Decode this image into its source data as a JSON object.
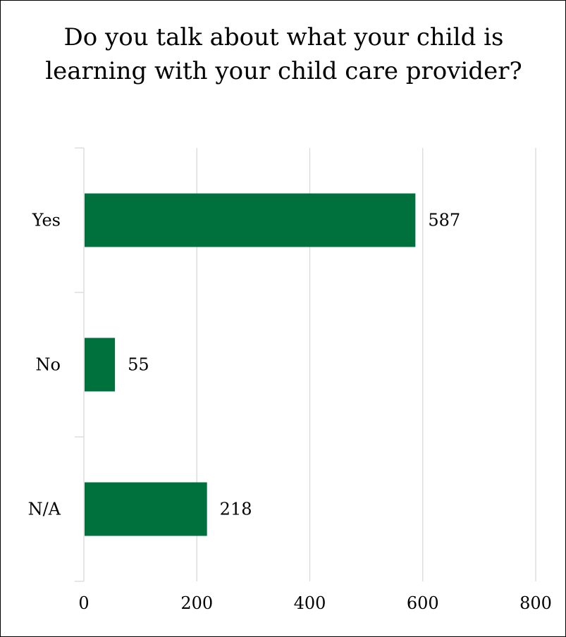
{
  "chart_data": {
    "type": "bar",
    "orientation": "horizontal",
    "title": "Do you talk about what your child is learning with your child care provider?",
    "categories": [
      "Yes",
      "No",
      "N/A"
    ],
    "values": [
      587,
      55,
      218
    ],
    "xlim": [
      0,
      800
    ],
    "x_ticks": [
      "0",
      "200",
      "400",
      "600",
      "800"
    ],
    "grid": "vertical",
    "bar_color": "#00703C",
    "data_labels": true
  }
}
